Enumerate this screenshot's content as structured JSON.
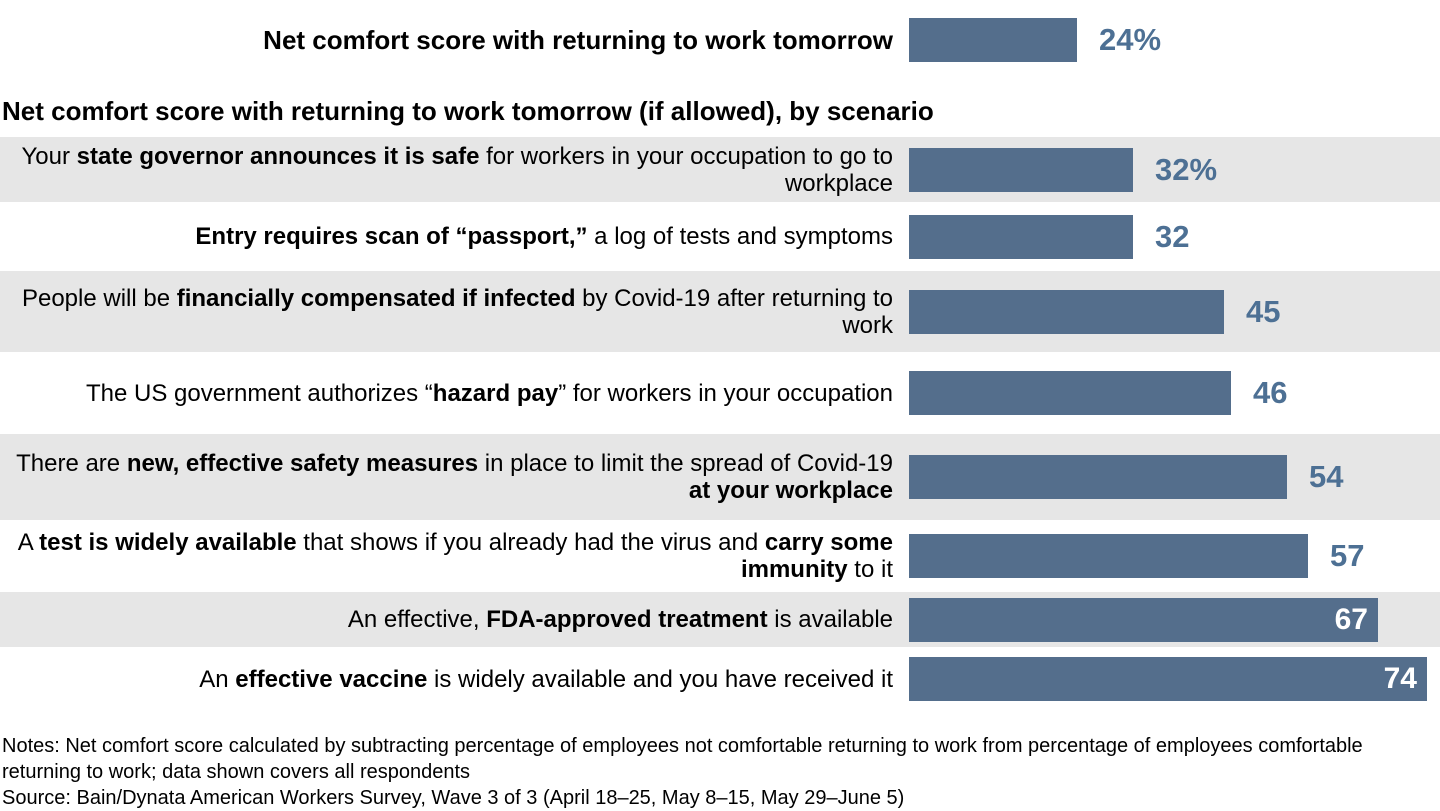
{
  "colors": {
    "background": "#FFFFFF",
    "bar": "#546E8C",
    "value_text": "#4D7094",
    "value_text_inside": "#FFFFFF",
    "row_stripe": "#E6E6E6",
    "text": "#000000"
  },
  "section_title": "Net comfort score with returning to work tomorrow (if allowed), by scenario",
  "chart_data": {
    "type": "bar",
    "orientation": "horizontal",
    "title": "Net comfort score with returning to work tomorrow (if allowed), by scenario",
    "value_unit": "net comfort score (percentage points)",
    "xlim": [
      0,
      74
    ],
    "axis": "none",
    "grid": false,
    "legend": "none",
    "overall_bar": {
      "label": "Net comfort score with returning to work tomorrow",
      "value": 24,
      "display": "24%"
    },
    "categories": [
      "Your state governor announces it is safe for workers in your occupation to go to workplace",
      "Entry requires scan of “passport,” a log of tests and symptoms",
      "People will be financially compensated if infected by Covid-19 after returning to work",
      "The US government authorizes “hazard pay” for workers in your occupation",
      "There are new, effective safety measures in place to limit the spread of Covid-19 at your workplace",
      "A test is widely available that shows if you already had the virus and carry some immunity to it",
      "An effective, FDA-approved treatment is available",
      "An effective vaccine is widely available and you have received it"
    ],
    "values": [
      32,
      32,
      45,
      46,
      54,
      57,
      67,
      74
    ],
    "rows": [
      {
        "segments": [
          {
            "t": "Your ",
            "b": false
          },
          {
            "t": "state governor announces it is safe",
            "b": true
          },
          {
            "t": " for workers in your occupation to go to workplace",
            "b": false
          }
        ],
        "value": 32,
        "display": "32%",
        "value_inside": false
      },
      {
        "segments": [
          {
            "t": "Entry requires scan of “passport,”",
            "b": true
          },
          {
            "t": " a log of tests and symptoms",
            "b": false
          }
        ],
        "value": 32,
        "display": "32",
        "value_inside": false
      },
      {
        "segments": [
          {
            "t": "People will be ",
            "b": false
          },
          {
            "t": "financially compensated if infected",
            "b": true
          },
          {
            "t": " by Covid-19 after returning to work",
            "b": false
          }
        ],
        "value": 45,
        "display": "45",
        "value_inside": false
      },
      {
        "segments": [
          {
            "t": "The US government authorizes “",
            "b": false
          },
          {
            "t": "hazard pay",
            "b": true
          },
          {
            "t": "” for workers in your occupation",
            "b": false
          }
        ],
        "value": 46,
        "display": "46",
        "value_inside": false
      },
      {
        "segments": [
          {
            "t": "There are ",
            "b": false
          },
          {
            "t": "new, effective safety measures",
            "b": true
          },
          {
            "t": " in place to limit the spread of Covid-19 ",
            "b": false
          },
          {
            "t": "at your workplace",
            "b": true
          }
        ],
        "value": 54,
        "display": "54",
        "value_inside": false
      },
      {
        "segments": [
          {
            "t": "A ",
            "b": false
          },
          {
            "t": "test is widely available",
            "b": true
          },
          {
            "t": " that shows if you already had the virus and ",
            "b": false
          },
          {
            "t": "carry some immunity",
            "b": true
          },
          {
            "t": " to it",
            "b": false
          }
        ],
        "value": 57,
        "display": "57",
        "value_inside": false
      },
      {
        "segments": [
          {
            "t": "An effective, ",
            "b": false
          },
          {
            "t": "FDA-approved treatment",
            "b": true
          },
          {
            "t": " is available",
            "b": false
          }
        ],
        "value": 67,
        "display": "67",
        "value_inside": true
      },
      {
        "segments": [
          {
            "t": "An ",
            "b": false
          },
          {
            "t": "effective vaccine",
            "b": true
          },
          {
            "t": " is widely available and you have received it",
            "b": false
          }
        ],
        "value": 74,
        "display": "74",
        "value_inside": true
      }
    ]
  },
  "notes": {
    "notes_line": "Notes: Net comfort score calculated by subtracting percentage of employees not comfortable returning to work from percentage of employees comfortable returning to work; data shown covers all respondents",
    "source_line": "Source: Bain/Dynata American Workers Survey, Wave 3 of 3 (April 18–25, May 8–15, May 29–June 5)"
  }
}
